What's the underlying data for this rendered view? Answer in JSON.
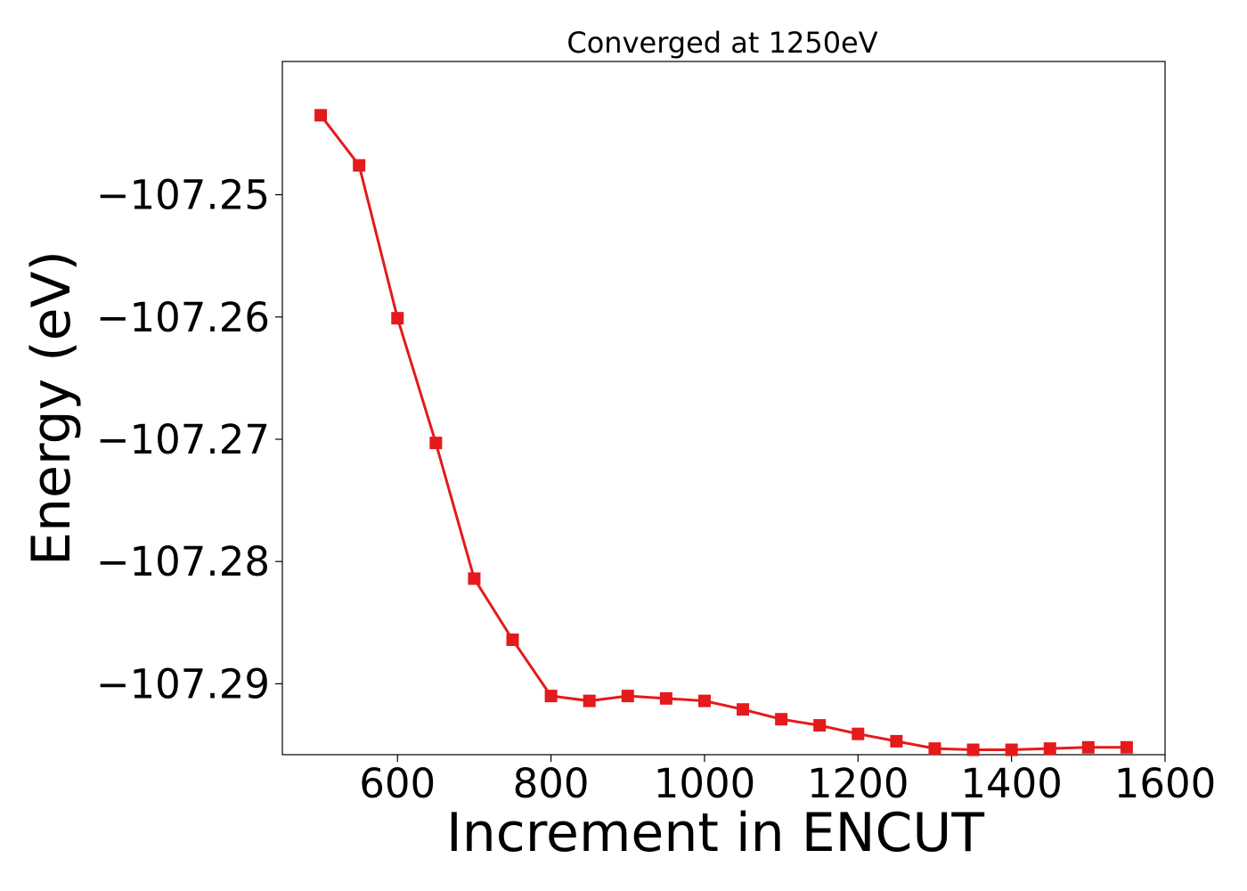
{
  "chart_data": {
    "type": "line",
    "title": "Converged at 1250eV",
    "xlabel": "Increment in ENCUT",
    "ylabel": "Energy (eV)",
    "xlim": [
      450,
      1600
    ],
    "ylim": [
      -107.2958,
      -107.2391
    ],
    "xticks": [
      600,
      800,
      1000,
      1200,
      1400,
      1600
    ],
    "xtick_labels": [
      "600",
      "800",
      "1000",
      "1200",
      "1400",
      "1600"
    ],
    "yticks": [
      -107.25,
      -107.26,
      -107.27,
      -107.28,
      -107.29
    ],
    "ytick_labels": [
      "−107.25",
      "−107.26",
      "−107.27",
      "−107.28",
      "−107.29"
    ],
    "grid": false,
    "marker": "square",
    "color": "#e41a1c",
    "series": [
      {
        "x": [
          500,
          550,
          600,
          650,
          700,
          750,
          800,
          850,
          900,
          950,
          1000,
          1050,
          1100,
          1150,
          1200,
          1250,
          1300,
          1350,
          1400,
          1450,
          1500,
          1550
        ],
        "y": [
          -107.2435,
          -107.2476,
          -107.2601,
          -107.2703,
          -107.2814,
          -107.2864,
          -107.291,
          -107.2914,
          -107.291,
          -107.2912,
          -107.2914,
          -107.2921,
          -107.2929,
          -107.2934,
          -107.2941,
          -107.2947,
          -107.2953,
          -107.2954,
          -107.2954,
          -107.2953,
          -107.2952,
          -107.2952
        ]
      }
    ]
  }
}
